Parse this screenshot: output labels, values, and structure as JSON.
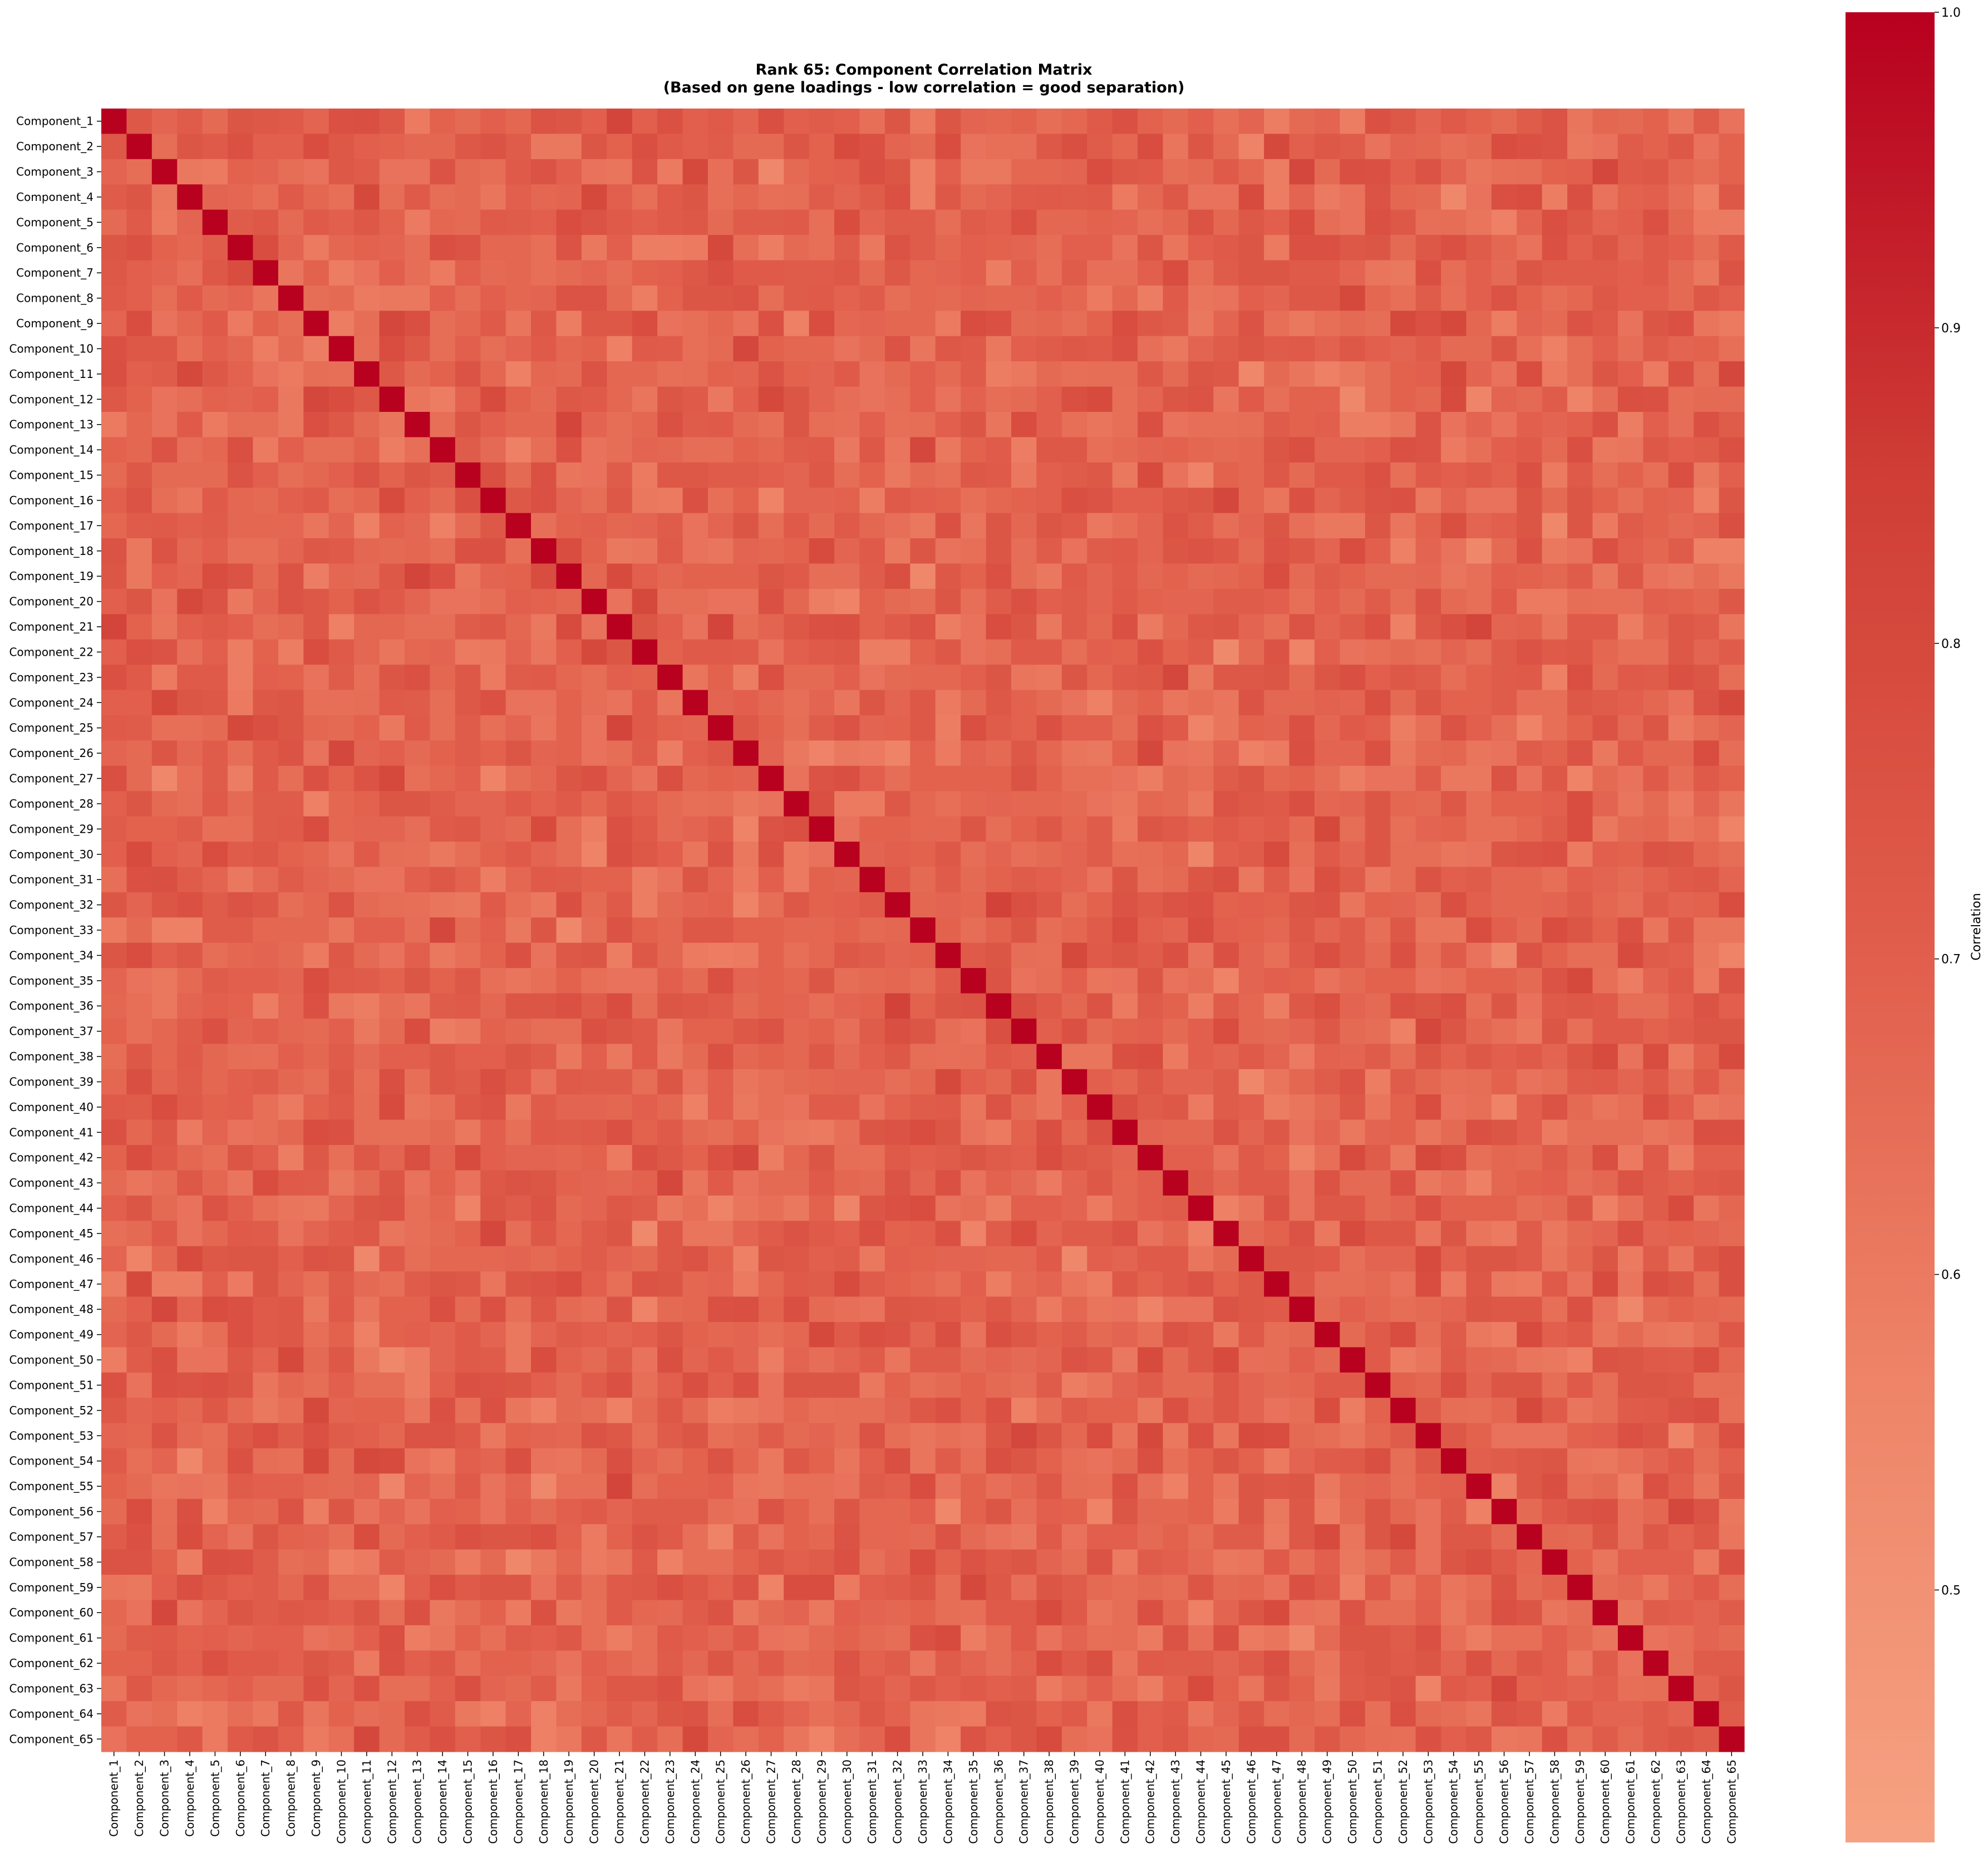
{
  "chart_data": {
    "type": "heatmap",
    "title": "Rank 65: Component Correlation Matrix",
    "subtitle": "(Based on gene loadings - low correlation = good separation)",
    "colorbar_label": "Correlation",
    "colorbar_ticks": [
      "0.5",
      "0.6",
      "0.7",
      "0.8",
      "0.9",
      "1.0"
    ],
    "value_range": [
      0.42,
      1.0
    ],
    "colormap": [
      "#f6a282",
      "#ee8468",
      "#e05c4a",
      "#cf3d35",
      "#b8001f"
    ],
    "diagonal_value": 1.0,
    "off_diagonal_typical_range": [
      0.45,
      0.92
    ],
    "grid": false,
    "labels": [
      "Component_1",
      "Component_2",
      "Component_3",
      "Component_4",
      "Component_5",
      "Component_6",
      "Component_7",
      "Component_8",
      "Component_9",
      "Component_10",
      "Component_11",
      "Component_12",
      "Component_13",
      "Component_14",
      "Component_15",
      "Component_16",
      "Component_17",
      "Component_18",
      "Component_19",
      "Component_20",
      "Component_21",
      "Component_22",
      "Component_23",
      "Component_24",
      "Component_25",
      "Component_26",
      "Component_27",
      "Component_28",
      "Component_29",
      "Component_30",
      "Component_31",
      "Component_32",
      "Component_33",
      "Component_34",
      "Component_35",
      "Component_36",
      "Component_37",
      "Component_38",
      "Component_39",
      "Component_40",
      "Component_41",
      "Component_42",
      "Component_43",
      "Component_44",
      "Component_45",
      "Component_46",
      "Component_47",
      "Component_48",
      "Component_49",
      "Component_50",
      "Component_51",
      "Component_52",
      "Component_53",
      "Component_54",
      "Component_55",
      "Component_56",
      "Component_57",
      "Component_58",
      "Component_59",
      "Component_60",
      "Component_61",
      "Component_62",
      "Component_63",
      "Component_64",
      "Component_65"
    ]
  }
}
